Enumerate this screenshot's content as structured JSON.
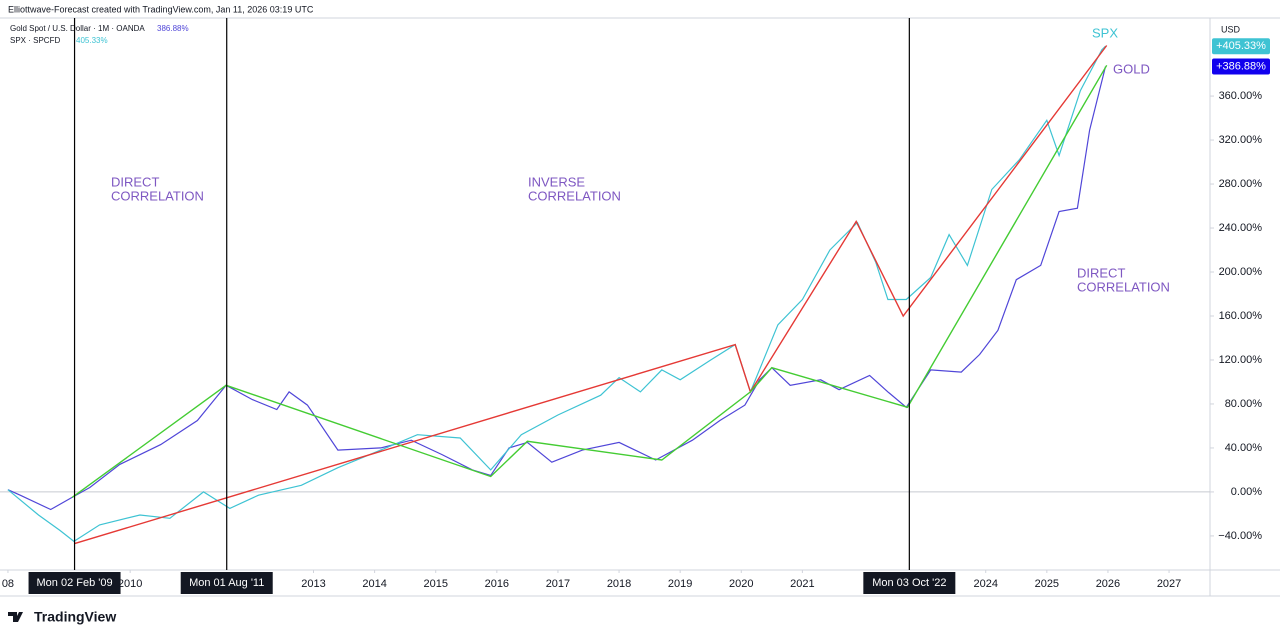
{
  "header": "Elliottwave-Forecast created with TradingView.com, Jan 11, 2026 03:19 UTC",
  "currency": "USD",
  "footer": "TradingView",
  "chart_data": {
    "type": "line",
    "xlim": [
      2007.87,
      2027.67
    ],
    "ylim": [
      -71,
      431
    ],
    "xticks": [
      {
        "value": 2008,
        "label": "08"
      },
      2010,
      2013,
      2014,
      2015,
      2016,
      2017,
      2018,
      2019,
      2020,
      2021,
      2024,
      2025,
      2026,
      2027
    ],
    "yticks": [
      {
        "value": -40,
        "label": "−40.00%"
      },
      {
        "value": 0,
        "label": "0.00%"
      },
      {
        "value": 40,
        "label": "40.00%"
      },
      {
        "value": 80,
        "label": "80.00%"
      },
      {
        "value": 120,
        "label": "120.00%"
      },
      {
        "value": 160,
        "label": "160.00%"
      },
      {
        "value": 200,
        "label": "200.00%"
      },
      {
        "value": 240,
        "label": "240.00%"
      },
      {
        "value": 280,
        "label": "280.00%"
      },
      {
        "value": 320,
        "label": "320.00%"
      },
      {
        "value": 360,
        "label": "360.00%"
      }
    ],
    "series": [
      {
        "name": "Gold Spot / U.S. Dollar · 1M · OANDA",
        "legend_value": "386.88%",
        "tag": "GOLD",
        "last_label": "+386.88%",
        "color": "#5046d8",
        "x": [
          2008.0,
          2008.2,
          2008.7,
          2009.05,
          2009.34,
          2009.83,
          2010.5,
          2011.1,
          2011.57,
          2012.0,
          2012.4,
          2012.6,
          2012.9,
          2013.4,
          2014.1,
          2014.6,
          2015.1,
          2015.6,
          2015.9,
          2016.2,
          2016.5,
          2016.9,
          2017.4,
          2018.0,
          2018.6,
          2019.2,
          2019.65,
          2020.06,
          2020.3,
          2020.5,
          2020.8,
          2021.3,
          2021.6,
          2022.1,
          2022.4,
          2022.7,
          2023.1,
          2023.6,
          2023.9,
          2024.2,
          2024.5,
          2024.9,
          2025.2,
          2025.5,
          2025.7,
          2025.96
        ],
        "values": [
          2,
          -3,
          -16,
          -5,
          4,
          25,
          43,
          65,
          97,
          84,
          75,
          91,
          79,
          38,
          40,
          47,
          34,
          20,
          15,
          40,
          45,
          27,
          38,
          45,
          29,
          47,
          65,
          79,
          102,
          113,
          97,
          102,
          93,
          106,
          91,
          77,
          111,
          109,
          125,
          147,
          193,
          206,
          255,
          258,
          329,
          386.88
        ]
      },
      {
        "name": "SPX · SPCFD",
        "legend_value": "405.33%",
        "tag": "SPX",
        "last_label": "+405.33%",
        "color": "#3ec3d3",
        "x": [
          2008.0,
          2008.5,
          2008.85,
          2009.08,
          2009.5,
          2010.16,
          2010.65,
          2011.2,
          2011.63,
          2012.1,
          2012.8,
          2013.4,
          2014.1,
          2014.7,
          2015.4,
          2015.9,
          2016.4,
          2017.0,
          2017.7,
          2018.0,
          2018.35,
          2018.7,
          2019.0,
          2019.5,
          2019.9,
          2020.15,
          2020.6,
          2021.0,
          2021.45,
          2021.9,
          2022.2,
          2022.4,
          2022.7,
          2023.1,
          2023.4,
          2023.7,
          2024.1,
          2024.55,
          2025.0,
          2025.2,
          2025.55,
          2025.9,
          2025.96
        ],
        "values": [
          2,
          -21,
          -35,
          -45,
          -30,
          -21,
          -24,
          0,
          -15,
          -3,
          6,
          22,
          38,
          52,
          49,
          20,
          52,
          70,
          88,
          104,
          91,
          111,
          102,
          120,
          134,
          91,
          152,
          175,
          220,
          245,
          209,
          175,
          175,
          195,
          234,
          206,
          275,
          302,
          338,
          306,
          365,
          402,
          405.33
        ]
      }
    ],
    "trendlines": [
      {
        "color": "#e53935",
        "x": [
          2009.09,
          2019.9,
          2020.15,
          2021.88,
          2022.65,
          2025.98
        ],
        "values": [
          -47,
          134,
          91,
          246,
          160,
          406
        ]
      },
      {
        "color": "#44cc33",
        "x": [
          2009.05,
          2011.57,
          2015.9,
          2016.5,
          2018.7,
          2020.15,
          2020.5,
          2022.72,
          2025.98
        ],
        "values": [
          -5,
          97,
          14,
          46,
          29,
          91,
          113,
          77,
          388
        ]
      }
    ],
    "markers": [
      {
        "x": 2009.09,
        "label": "Mon 02 Feb '09"
      },
      {
        "x": 2011.58,
        "label": "Mon 01 Aug '11"
      },
      {
        "x": 2022.75,
        "label": "Mon 03 Oct '22"
      }
    ],
    "annotations": [
      [
        "DIRECT",
        "CORRELATION"
      ],
      [
        "INVERSE",
        "CORRELATION"
      ],
      [
        "DIRECT",
        "CORRELATION"
      ]
    ]
  }
}
